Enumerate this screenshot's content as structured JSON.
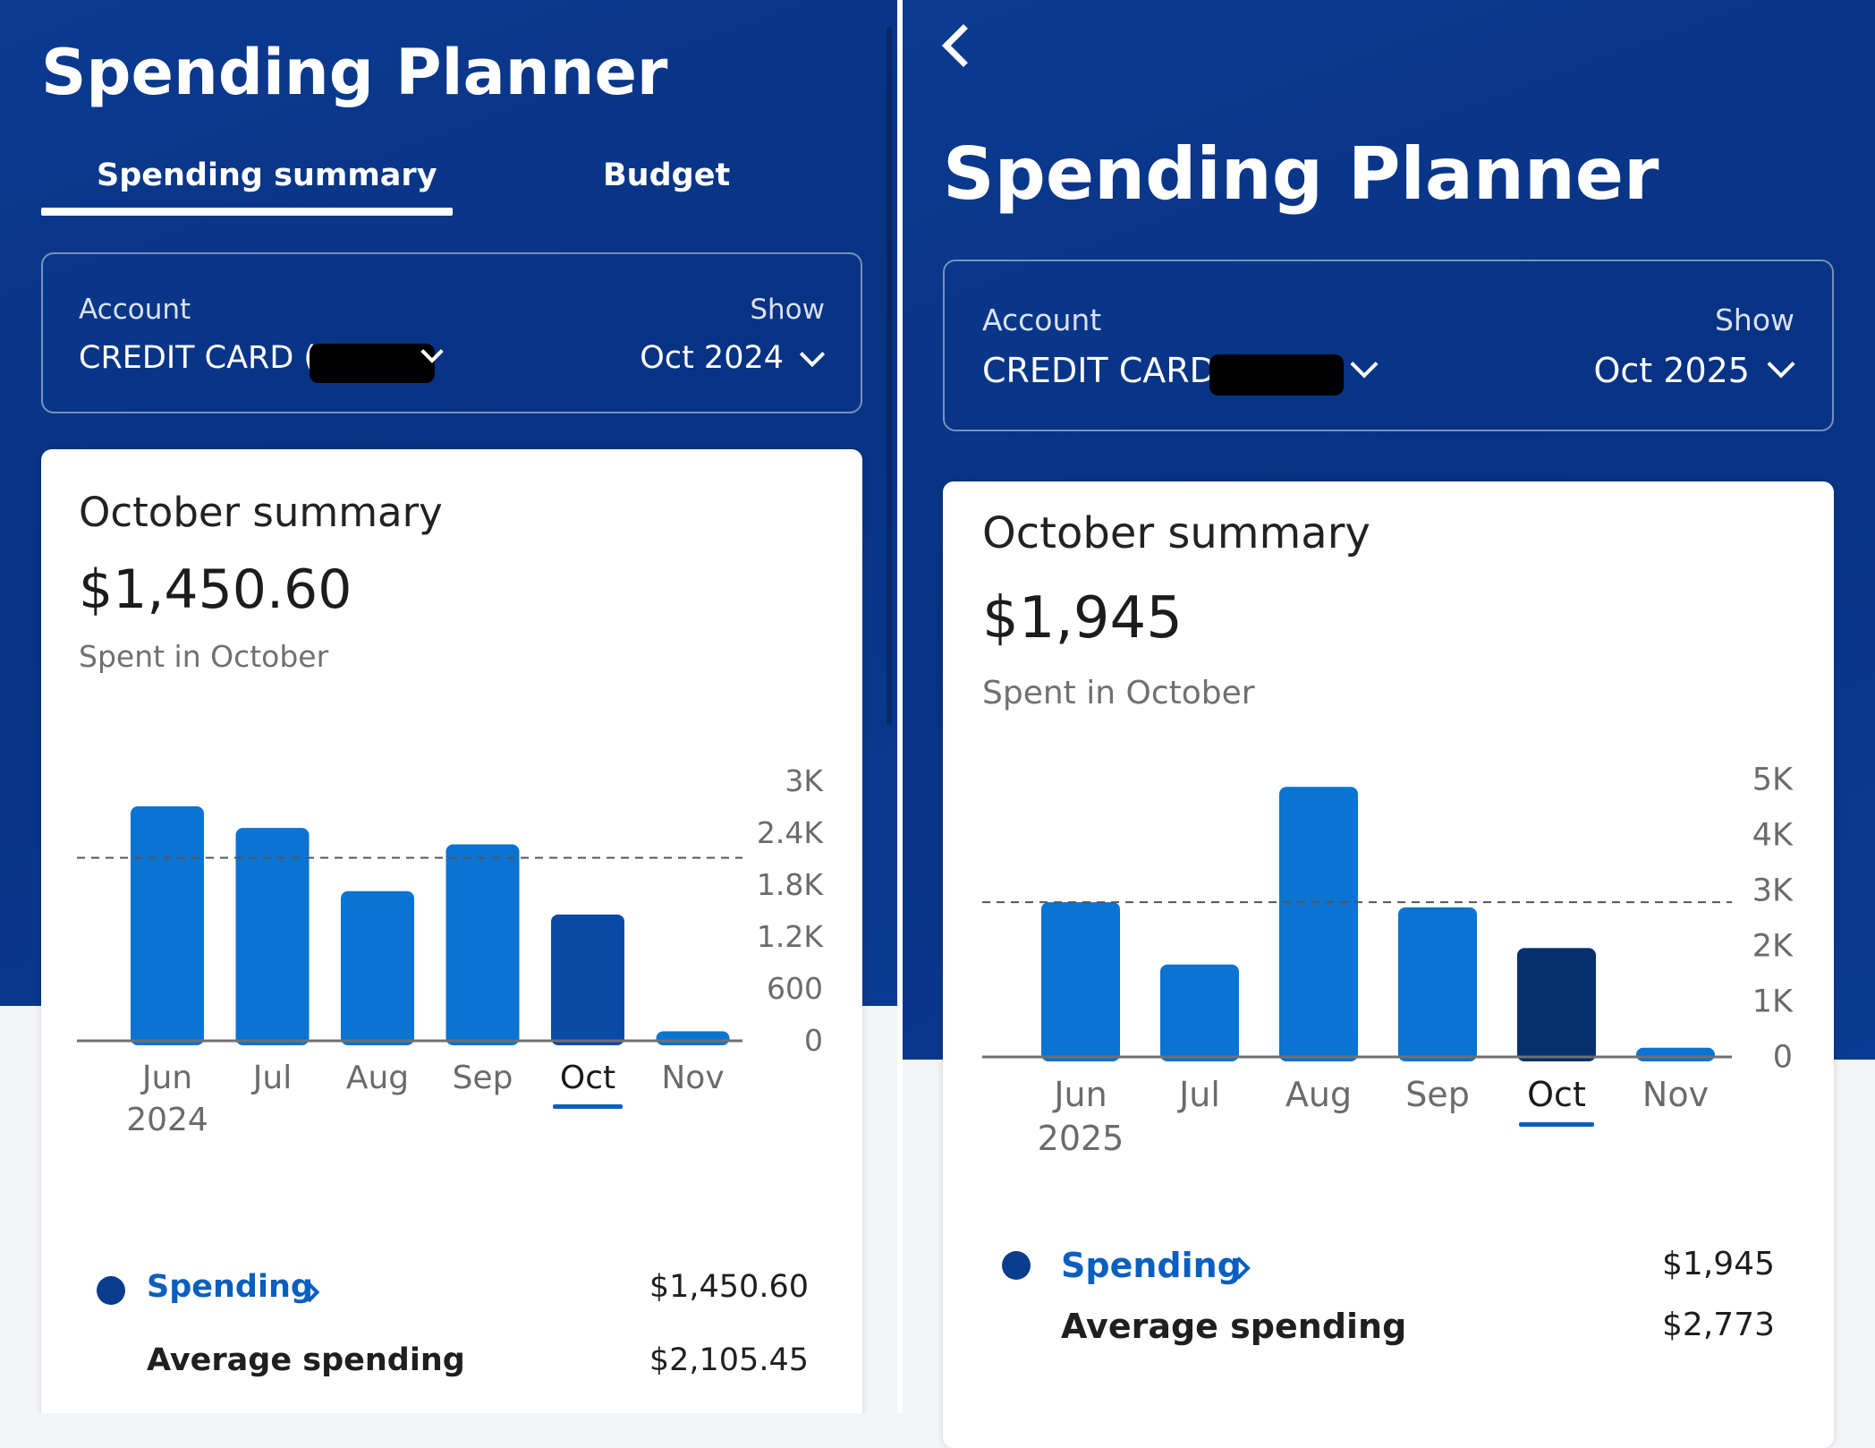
{
  "left": {
    "app_title": "Spending Planner",
    "tabs": [
      {
        "label": "Spending summary",
        "active": true
      },
      {
        "label": "Budget",
        "active": false
      }
    ],
    "filters": {
      "account_label": "Account",
      "account_value": "CREDIT CARD (.",
      "show_label": "Show",
      "show_value": "Oct 2024"
    },
    "summary": {
      "title": "October summary",
      "amount": "$1,450.60",
      "subtitle": "Spent in October"
    },
    "legend": {
      "spending_label": "Spending",
      "spending_value": "$1,450.60",
      "average_label": "Average spending",
      "average_value": "$2,105.45"
    }
  },
  "right": {
    "app_title": "Spending Planner",
    "filters": {
      "account_label": "Account",
      "account_value": "CREDIT CARD",
      "show_label": "Show",
      "show_value": "Oct 2025"
    },
    "summary": {
      "title": "October summary",
      "amount": "$1,945",
      "subtitle": "Spent in October"
    },
    "legend": {
      "spending_label": "Spending",
      "spending_value": "$1,945",
      "average_label": "Average spending",
      "average_value": "$2,773"
    }
  },
  "colors": {
    "header_blue": "#0a3890",
    "bar": "#0b73d1",
    "bar_selected_left": "#0a4aa6",
    "bar_selected_right": "#062f6e",
    "link": "#0b5fbf",
    "legend_dot": "#0a3c8c"
  },
  "icons": [
    "back-chevron-icon",
    "chevron-down-icon",
    "chevron-right-icon"
  ],
  "chart_data": [
    {
      "type": "bar",
      "categories": [
        "Jun",
        "Jul",
        "Aug",
        "Sep",
        "Oct",
        "Nov"
      ],
      "category_sublabel": {
        "Jun": "2024"
      },
      "values": [
        2700,
        2450,
        1720,
        2260,
        1450,
        100
      ],
      "average": 2105.45,
      "selected": "Oct",
      "yticks": [
        "0",
        "600",
        "1.2K",
        "1.8K",
        "2.4K",
        "3K"
      ],
      "ylim": [
        0,
        3000
      ],
      "y_axis_side": "right",
      "grid": false
    },
    {
      "type": "bar",
      "categories": [
        "Jun",
        "Jul",
        "Aug",
        "Sep",
        "Oct",
        "Nov"
      ],
      "category_sublabel": {
        "Jun": "2025"
      },
      "values": [
        2773,
        1650,
        4850,
        2680,
        1945,
        150
      ],
      "average": 2773,
      "selected": "Oct",
      "yticks": [
        "0",
        "1K",
        "2K",
        "3K",
        "4K",
        "5K"
      ],
      "ylim": [
        0,
        5000
      ],
      "y_axis_side": "right",
      "grid": false
    }
  ]
}
